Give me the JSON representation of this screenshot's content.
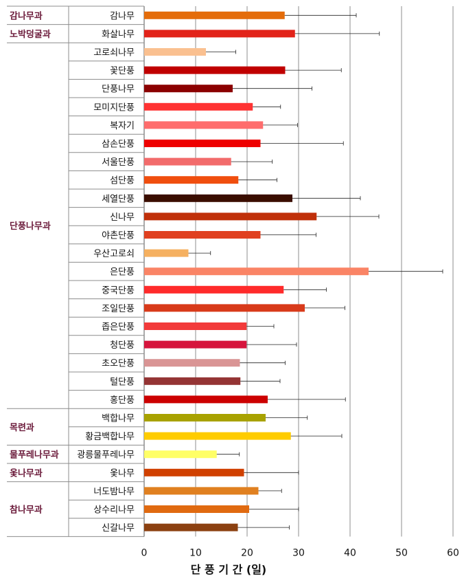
{
  "chart_data": {
    "type": "bar",
    "orientation": "horizontal",
    "xlabel": "단 풍 기 간 (일)",
    "xlim": [
      0,
      60
    ],
    "xticks": [
      0,
      10,
      20,
      30,
      40,
      50,
      60
    ],
    "grid": "vertical",
    "categories": [
      "감나무",
      "화살나무",
      "고로쇠나무",
      "꽃단풍",
      "단풍나무",
      "모미지단풍",
      "복자기",
      "삼손단풍",
      "서울단풍",
      "섬단풍",
      "세열단풍",
      "신나무",
      "야촌단풍",
      "우산고로쇠",
      "은단풍",
      "중국단풍",
      "조일단풍",
      "좁은단풍",
      "청단풍",
      "초오단풍",
      "털단풍",
      "홍단풍",
      "백합나무",
      "황금백합나무",
      "광릉물푸레나무",
      "옻나무",
      "너도밤나무",
      "상수리나무",
      "신갈나무"
    ],
    "values": [
      27.3,
      29.3,
      12,
      27.4,
      17.2,
      21.1,
      23.1,
      22.6,
      16.9,
      18.3,
      28.8,
      33.5,
      22.6,
      8.6,
      43.6,
      27.1,
      31.2,
      19.9,
      19.9,
      18.6,
      18.7,
      24.0,
      23.6,
      28.5,
      14.1,
      19.4,
      22.2,
      20.4,
      18.2
    ],
    "errors": [
      13.9,
      16.4,
      5.8,
      10.9,
      15.4,
      5.4,
      6.7,
      16.1,
      8.0,
      7.5,
      13.2,
      12.1,
      10.8,
      4.3,
      14.4,
      8.3,
      7.8,
      5.3,
      9.7,
      8.8,
      7.7,
      15.1,
      8.1,
      9.9,
      4.4,
      10.6,
      4.5,
      9.6,
      10.0
    ],
    "colors": [
      "#e46c0a",
      "#e2231a",
      "#fac090",
      "#c00000",
      "#8b0000",
      "#ff3333",
      "#ff6d6d",
      "#ee0000",
      "#f26b6b",
      "#f04e0e",
      "#3a0d00",
      "#c0300a",
      "#e04020",
      "#f5b060",
      "#fa8466",
      "#ff2b2b",
      "#d83a1a",
      "#f23a3a",
      "#d6143c",
      "#d99494",
      "#943434",
      "#cc0000",
      "#a8a200",
      "#ffcc00",
      "#ffff66",
      "#d04000",
      "#e08020",
      "#e06a10",
      "#8b4010"
    ],
    "families": [
      {
        "name": "감나무과",
        "start": 0,
        "end": 0
      },
      {
        "name": "노박덩굴과",
        "start": 1,
        "end": 1
      },
      {
        "name": "단풍나무과",
        "start": 2,
        "end": 21
      },
      {
        "name": "목련과",
        "start": 22,
        "end": 23
      },
      {
        "name": "물푸레나무과",
        "start": 24,
        "end": 24
      },
      {
        "name": "옻나무과",
        "start": 25,
        "end": 25
      },
      {
        "name": "참나무과",
        "start": 26,
        "end": 28
      }
    ]
  }
}
